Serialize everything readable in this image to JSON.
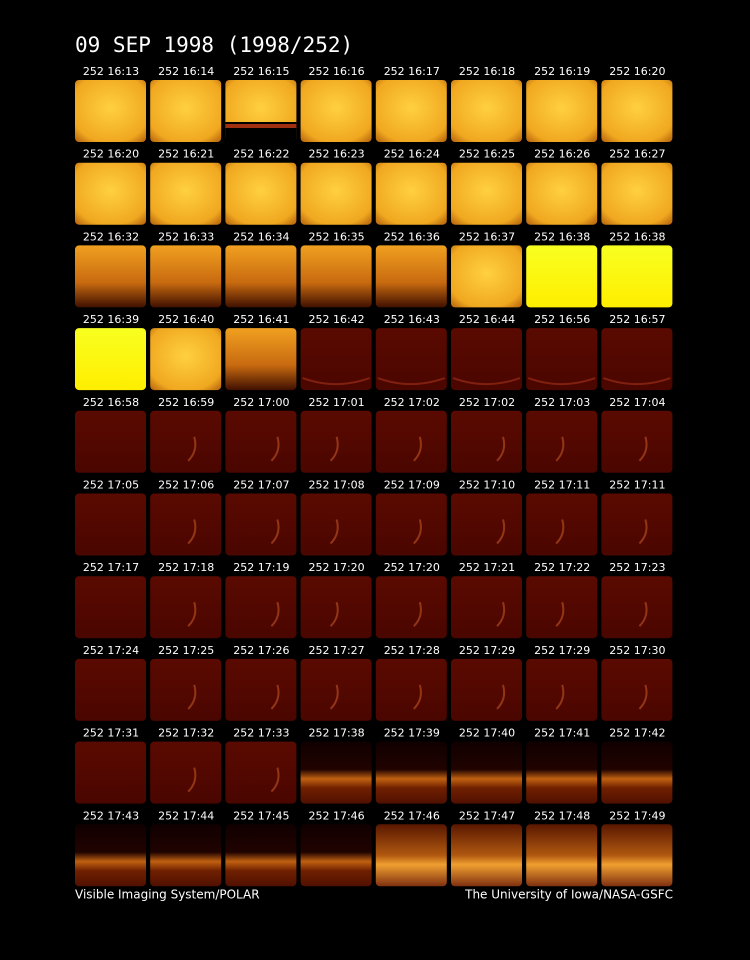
{
  "header": {
    "title": "09 SEP 1998  (1998/252)"
  },
  "frames": [
    [
      "252 16:13",
      "252 16:14",
      "252 16:15",
      "252 16:16",
      "252 16:17",
      "252 16:18",
      "252 16:19",
      "252 16:20"
    ],
    [
      "252 16:20",
      "252 16:21",
      "252 16:22",
      "252 16:23",
      "252 16:24",
      "252 16:25",
      "252 16:26",
      "252 16:27"
    ],
    [
      "252 16:32",
      "252 16:33",
      "252 16:34",
      "252 16:35",
      "252 16:36",
      "252 16:37",
      "252 16:38",
      "252 16:38"
    ],
    [
      "252 16:39",
      "252 16:40",
      "252 16:41",
      "252 16:42",
      "252 16:43",
      "252 16:44",
      "252 16:56",
      "252 16:57"
    ],
    [
      "252 16:58",
      "252 16:59",
      "252 17:00",
      "252 17:01",
      "252 17:02",
      "252 17:02",
      "252 17:03",
      "252 17:04"
    ],
    [
      "252 17:05",
      "252 17:06",
      "252 17:07",
      "252 17:08",
      "252 17:09",
      "252 17:10",
      "252 17:11",
      "252 17:11"
    ],
    [
      "252 17:17",
      "252 17:18",
      "252 17:19",
      "252 17:20",
      "252 17:20",
      "252 17:21",
      "252 17:22",
      "252 17:23"
    ],
    [
      "252 17:24",
      "252 17:25",
      "252 17:26",
      "252 17:27",
      "252 17:28",
      "252 17:29",
      "252 17:29",
      "252 17:30"
    ],
    [
      "252 17:31",
      "252 17:32",
      "252 17:33",
      "252 17:38",
      "252 17:39",
      "252 17:40",
      "252 17:41",
      "252 17:42"
    ],
    [
      "252 17:43",
      "252 17:44",
      "252 17:45",
      "252 17:46",
      "252 17:46",
      "252 17:47",
      "252 17:48",
      "252 17:49"
    ]
  ],
  "footer": {
    "left": "Visible Imaging System/POLAR",
    "right": "The University of Iowa/NASA-GSFC"
  }
}
